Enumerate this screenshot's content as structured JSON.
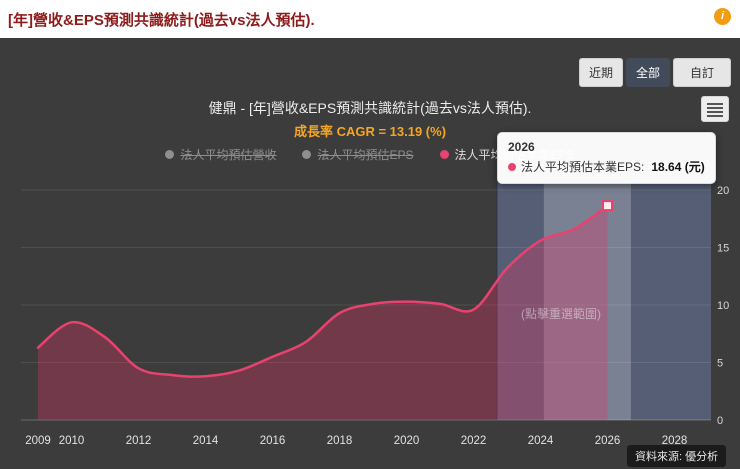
{
  "header": {
    "title": "[年]營收&EPS預測共識統計(過去vs法人預估).",
    "info_icon": "i"
  },
  "range_selector": {
    "buttons": [
      {
        "label": "近期",
        "active": false
      },
      {
        "label": "全部",
        "active": true
      },
      {
        "label": "自訂",
        "active": false
      }
    ]
  },
  "chart": {
    "title": "健鼎 - [年]營收&EPS預測共識統計(過去vs法人預估).",
    "subtitle": "成長率 CAGR = 13.19 (%)",
    "legend": [
      {
        "label": "法人平均預估營收",
        "enabled": false,
        "color": "#8f8f8f"
      },
      {
        "label": "法人平均預估EPS",
        "enabled": false,
        "color": "#8f8f8f"
      },
      {
        "label": "法人平均預估本業EPS",
        "enabled": true,
        "color": "#e8426f"
      }
    ],
    "band_hint": "(點擊重選範圍)",
    "source": "資料來源: 優分析"
  },
  "tooltip": {
    "year": "2026",
    "series": "法人平均預估本業EPS:",
    "value": "18.64 (元)",
    "dot_color": "#e8426f"
  },
  "chart_data": {
    "type": "line",
    "title": "健鼎 - [年]營收&EPS預測共識統計(過去vs法人預估).",
    "subtitle": "成長率 CAGR = 13.19 (%)",
    "xlabel": "",
    "ylabel": "",
    "xlim": [
      2008.5,
      2029.1
    ],
    "ylim": [
      0,
      20
    ],
    "xticks": [
      2009,
      2010,
      2012,
      2014,
      2016,
      2018,
      2020,
      2022,
      2024,
      2026,
      2028
    ],
    "yticks": [
      0,
      5,
      10,
      15,
      20
    ],
    "grid": true,
    "legend_position": "top",
    "yaxis_side": "right",
    "series": [
      {
        "name": "法人平均預估營收",
        "visible": false,
        "color": "#8f8f8f",
        "x": [],
        "values": []
      },
      {
        "name": "法人平均預估EPS",
        "visible": false,
        "color": "#8f8f8f",
        "x": [],
        "values": []
      },
      {
        "name": "法人平均預估本業EPS",
        "visible": true,
        "color": "#e8426f",
        "x": [
          2009,
          2010,
          2011,
          2012,
          2013,
          2014,
          2015,
          2016,
          2017,
          2018,
          2019,
          2020,
          2021,
          2022,
          2023,
          2024,
          2025,
          2026
        ],
        "values": [
          6.3,
          8.5,
          7.2,
          4.5,
          3.9,
          3.8,
          4.3,
          5.5,
          6.8,
          9.3,
          10.1,
          10.3,
          10.1,
          9.6,
          13.2,
          15.6,
          16.6,
          18.64
        ]
      }
    ],
    "highlight_point": {
      "x": 2026,
      "y": 18.64,
      "label": "18.64 (元)"
    },
    "plot_bands": {
      "forecast": {
        "from": 2022.7,
        "to": 2029.1
      },
      "selected": {
        "from": 2024.1,
        "to": 2026.7
      }
    },
    "colors": {
      "line": "#e8426f",
      "area_fill": "rgba(224,51,106,0.33)",
      "forecast_band": "rgba(123,144,201,0.40)",
      "selected_band": "rgba(255,255,255,0.22)",
      "marker_fill": "#fdeef4",
      "panel_bg": "#3c3c3c",
      "header_text": "#8e1b1b",
      "subtitle_text": "#f5a623",
      "info_icon_bg": "#f39c12"
    }
  }
}
